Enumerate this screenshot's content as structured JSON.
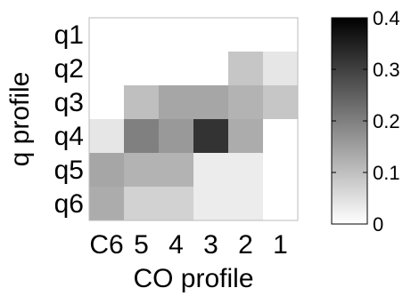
{
  "chart_data": {
    "type": "heatmap",
    "title": "",
    "xlabel": "CO profile",
    "ylabel": "q profile",
    "x_categories": [
      "C6",
      "5",
      "4",
      "3",
      "2",
      "1"
    ],
    "y_categories": [
      "q1",
      "q2",
      "q3",
      "q4",
      "q5",
      "q6"
    ],
    "values": [
      [
        0.0,
        0.0,
        0.0,
        0.0,
        0.0,
        0.0
      ],
      [
        0.0,
        0.0,
        0.0,
        0.0,
        0.09,
        0.04
      ],
      [
        0.0,
        0.1,
        0.14,
        0.14,
        0.12,
        0.09
      ],
      [
        0.04,
        0.2,
        0.16,
        0.32,
        0.13,
        0.0
      ],
      [
        0.14,
        0.12,
        0.12,
        0.03,
        0.03,
        0.0
      ],
      [
        0.13,
        0.07,
        0.07,
        0.03,
        0.03,
        0.0
      ]
    ],
    "colorbar": {
      "min": 0,
      "max": 0.4,
      "ticks": [
        0,
        0.1,
        0.2,
        0.3,
        0.4
      ],
      "tick_labels": [
        "0",
        "0.1",
        "0.2",
        "0.3",
        "0.4"
      ],
      "colormap": "white-to-black"
    },
    "grid": false,
    "colors": {
      "low": "#ffffff",
      "high": "#000000"
    }
  }
}
